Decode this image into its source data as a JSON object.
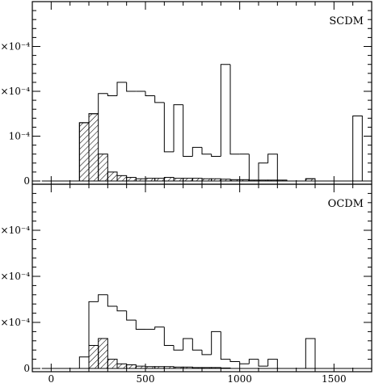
{
  "chart_data": [
    {
      "type": "bar",
      "panel_label": "SCDM",
      "ytick_labels": [
        "0",
        "10⁻⁴",
        "×10⁻⁴",
        "×10⁻⁴"
      ],
      "xlim": [
        -100,
        1700
      ],
      "ylim": [
        0,
        4
      ],
      "bin_width": 50,
      "series": [
        {
          "style": "outline",
          "bins": [
            [
              150,
              1.3
            ],
            [
              200,
              1.5
            ],
            [
              250,
              1.95
            ],
            [
              300,
              1.9
            ],
            [
              350,
              2.2
            ],
            [
              400,
              2.0
            ],
            [
              450,
              2.0
            ],
            [
              500,
              1.9
            ],
            [
              550,
              1.75
            ],
            [
              600,
              0.65
            ],
            [
              650,
              1.7
            ],
            [
              700,
              0.55
            ],
            [
              750,
              0.75
            ],
            [
              800,
              0.6
            ],
            [
              850,
              0.55
            ],
            [
              900,
              2.6
            ],
            [
              950,
              0.6
            ],
            [
              1000,
              0.6
            ],
            [
              1050,
              0.0
            ],
            [
              1100,
              0.4
            ],
            [
              1150,
              0.6
            ],
            [
              1350,
              0.05
            ],
            [
              1600,
              1.45
            ]
          ]
        },
        {
          "style": "hatched",
          "bins": [
            [
              150,
              1.3
            ],
            [
              200,
              1.5
            ],
            [
              250,
              0.6
            ],
            [
              300,
              0.2
            ],
            [
              350,
              0.12
            ],
            [
              400,
              0.08
            ],
            [
              450,
              0.05
            ],
            [
              500,
              0.06
            ],
            [
              550,
              0.06
            ],
            [
              600,
              0.08
            ],
            [
              650,
              0.06
            ],
            [
              700,
              0.06
            ],
            [
              750,
              0.06
            ],
            [
              800,
              0.05
            ],
            [
              850,
              0.05
            ],
            [
              900,
              0.04
            ],
            [
              950,
              0.03
            ],
            [
              1000,
              0.03
            ],
            [
              1050,
              0.02
            ],
            [
              1100,
              0.02
            ],
            [
              1150,
              0.02
            ],
            [
              1200,
              0.02
            ],
            [
              1350,
              0.05
            ]
          ]
        }
      ]
    },
    {
      "type": "bar",
      "panel_label": "OCDM",
      "xtick_labels": [
        "0",
        "500",
        "1000",
        "1500"
      ],
      "xtick_values": [
        0,
        500,
        1000,
        1500
      ],
      "ytick_labels": [
        "0",
        "×10⁻⁴",
        "×10⁻⁴",
        "×10⁻⁴"
      ],
      "xlim": [
        -100,
        1700
      ],
      "ylim": [
        0,
        4
      ],
      "bin_width": 50,
      "series": [
        {
          "style": "outline",
          "bins": [
            [
              150,
              0.25
            ],
            [
              200,
              1.45
            ],
            [
              250,
              1.6
            ],
            [
              300,
              1.35
            ],
            [
              350,
              1.25
            ],
            [
              400,
              1.05
            ],
            [
              450,
              0.85
            ],
            [
              500,
              0.85
            ],
            [
              550,
              0.9
            ],
            [
              600,
              0.5
            ],
            [
              650,
              0.4
            ],
            [
              700,
              0.65
            ],
            [
              750,
              0.4
            ],
            [
              800,
              0.3
            ],
            [
              850,
              0.8
            ],
            [
              900,
              0.2
            ],
            [
              950,
              0.15
            ],
            [
              1000,
              0.1
            ],
            [
              1050,
              0.2
            ],
            [
              1100,
              0.05
            ],
            [
              1150,
              0.2
            ],
            [
              1350,
              0.65
            ]
          ]
        },
        {
          "style": "hatched",
          "bins": [
            [
              150,
              0.0
            ],
            [
              200,
              0.5
            ],
            [
              250,
              0.65
            ],
            [
              300,
              0.2
            ],
            [
              350,
              0.1
            ],
            [
              400,
              0.08
            ],
            [
              450,
              0.05
            ],
            [
              500,
              0.04
            ],
            [
              550,
              0.04
            ],
            [
              600,
              0.04
            ],
            [
              650,
              0.03
            ],
            [
              700,
              0.03
            ],
            [
              750,
              0.02
            ],
            [
              800,
              0.02
            ],
            [
              850,
              0.02
            ],
            [
              900,
              0.01
            ]
          ]
        }
      ]
    }
  ]
}
